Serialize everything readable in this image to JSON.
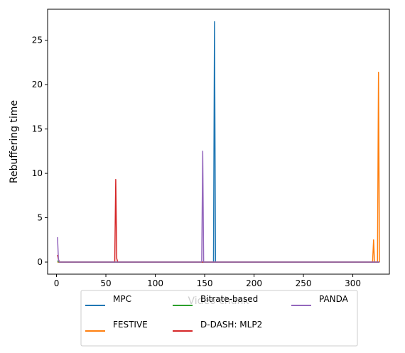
{
  "chart_data": {
    "type": "line",
    "title": "",
    "xlabel": "Video chunk",
    "ylabel": "Rebuffering time",
    "xlim": [
      -9,
      337
    ],
    "ylim": [
      -1.36,
      28.5
    ],
    "xticks": [
      0,
      50,
      100,
      150,
      200,
      250,
      300
    ],
    "yticks": [
      0,
      5,
      10,
      15,
      20,
      25
    ],
    "grid": false,
    "legend_position": "bottom-center (overlapping x-axis label)",
    "series": [
      {
        "name": "MPC",
        "color": "#1f77b4",
        "x": [
          1,
          159,
          160,
          161,
          327
        ],
        "y": [
          0,
          0,
          27.1,
          0,
          0
        ]
      },
      {
        "name": "FESTIVE",
        "color": "#ff7f0e",
        "x": [
          1,
          320,
          321,
          322,
          325,
          326,
          327
        ],
        "y": [
          0,
          0,
          2.5,
          0,
          0,
          21.4,
          0
        ]
      },
      {
        "name": "Bitrate-based",
        "color": "#2ca02c",
        "x": [
          1,
          2,
          3,
          327
        ],
        "y": [
          0.15,
          0.05,
          0,
          0
        ]
      },
      {
        "name": "D-DASH: MLP2",
        "color": "#d62728",
        "x": [
          1,
          2,
          3,
          59,
          60,
          61,
          62,
          327
        ],
        "y": [
          0.8,
          0.3,
          0,
          0,
          9.3,
          0.4,
          0,
          0
        ]
      },
      {
        "name": "PANDA",
        "color": "#9467bd",
        "x": [
          1,
          2,
          3,
          147,
          148,
          149,
          327
        ],
        "y": [
          2.8,
          0.2,
          0,
          0,
          12.5,
          0,
          0
        ]
      }
    ]
  }
}
